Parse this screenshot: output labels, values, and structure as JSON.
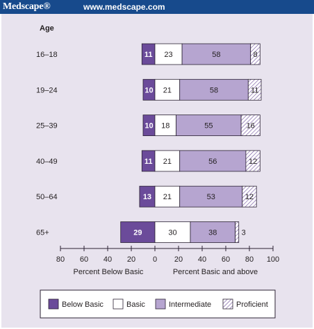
{
  "header": {
    "brand": "Medscape®",
    "url": "www.medscape.com"
  },
  "chart_data": {
    "type": "bar",
    "categories_title": "Age",
    "categories": [
      "16–18",
      "19–24",
      "25–39",
      "40–49",
      "50–64",
      "65+"
    ],
    "series": [
      {
        "name": "Below Basic",
        "values": [
          11,
          10,
          10,
          11,
          13,
          29
        ],
        "color": "#6b4b9a",
        "direction": "left"
      },
      {
        "name": "Basic",
        "values": [
          23,
          21,
          18,
          21,
          21,
          30
        ],
        "color": "#ffffff",
        "direction": "right"
      },
      {
        "name": "Intermediate",
        "values": [
          58,
          58,
          55,
          56,
          53,
          38
        ],
        "color": "#b6a5d0",
        "direction": "right"
      },
      {
        "name": "Proficient",
        "values": [
          8,
          11,
          16,
          12,
          12,
          3
        ],
        "color": "#ffffff",
        "pattern": "hatched",
        "direction": "right"
      }
    ],
    "xaxis": {
      "ticks": [
        "80",
        "60",
        "40",
        "20",
        "0",
        "20",
        "40",
        "60",
        "80",
        "100"
      ],
      "tick_values": [
        -80,
        -60,
        -40,
        -20,
        0,
        20,
        40,
        60,
        80,
        100
      ],
      "range": [
        -80,
        100
      ],
      "label_left": "Percent Below Basic",
      "label_right": "Percent Basic and above"
    },
    "legend_position": "bottom",
    "colors": {
      "below_basic": "#6b4b9a",
      "intermediate": "#b6a5d0",
      "outline": "#2b2233",
      "panel": "#e8e3ee",
      "header": "#174a8c"
    }
  }
}
